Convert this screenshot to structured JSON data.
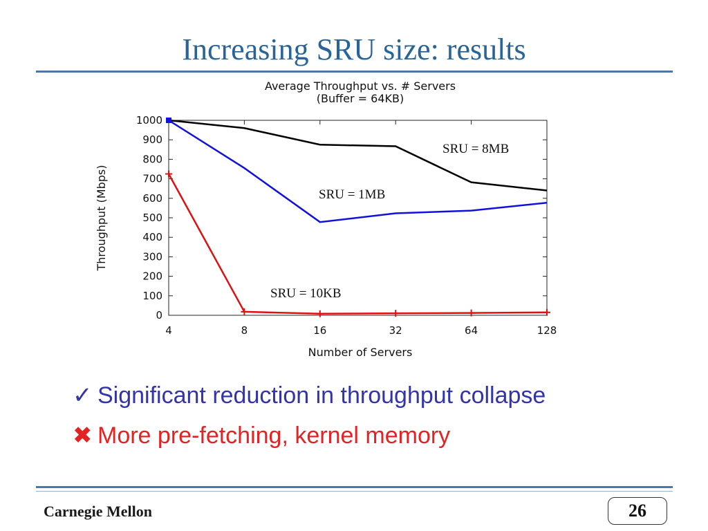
{
  "slide": {
    "title": "Increasing SRU size: results",
    "bullets": [
      {
        "icon": "checkmark-icon",
        "symbol": "✓",
        "text": "Significant reduction in throughput collapse",
        "color": "#3333aa"
      },
      {
        "icon": "cross-icon",
        "symbol": "✖",
        "text": "More pre-fetching, kernel memory",
        "color": "#e52222"
      }
    ],
    "footer": {
      "logo_text": "Carnegie Mellon",
      "page_number": "26"
    }
  },
  "chart_data": {
    "type": "line",
    "title": [
      "Average Throughput vs. # Servers",
      "(Buffer = 64KB)"
    ],
    "xlabel": "Number of Servers",
    "ylabel": "Throughput (Mbps)",
    "x_scale": "log2",
    "categories": [
      "4",
      "8",
      "16",
      "32",
      "64",
      "128"
    ],
    "ylim": [
      0,
      1000
    ],
    "yticks": [
      0,
      100,
      200,
      300,
      400,
      500,
      600,
      700,
      800,
      900,
      1000
    ],
    "grid": false,
    "series": [
      {
        "name": "SRU = 8MB",
        "color": "#000000",
        "values": [
          1000,
          960,
          875,
          867,
          682,
          640
        ]
      },
      {
        "name": "SRU = 1MB",
        "color": "#1111dd",
        "values": [
          1000,
          755,
          478,
          523,
          537,
          577
        ]
      },
      {
        "name": "SRU = 10KB",
        "color": "#e01010",
        "values": [
          725,
          18,
          8,
          10,
          12,
          15
        ]
      }
    ]
  }
}
